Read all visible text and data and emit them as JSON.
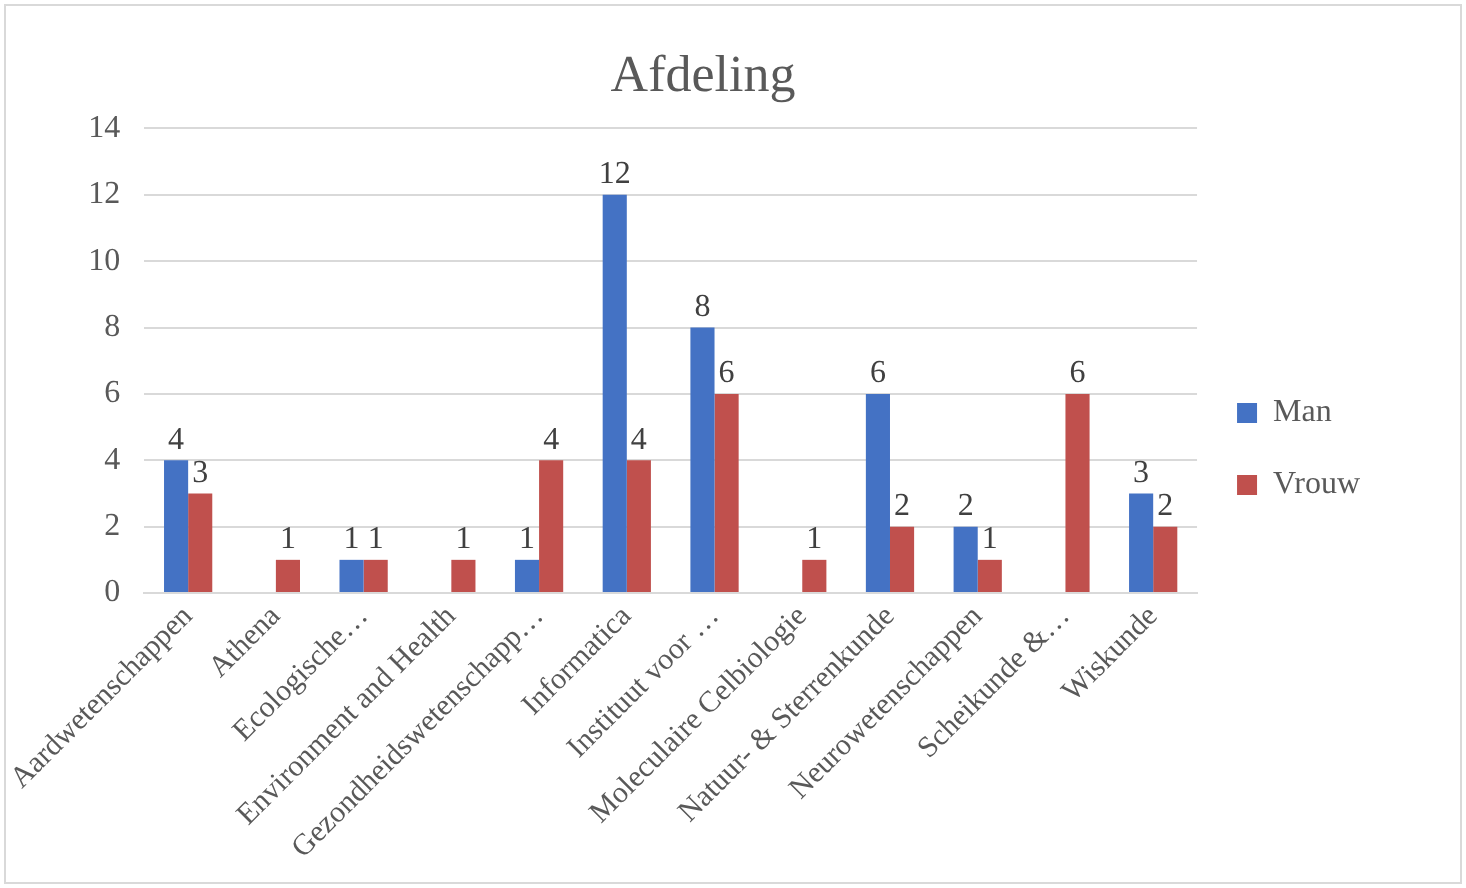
{
  "chart_data": {
    "type": "bar",
    "title": "Afdeling",
    "categories": [
      "Aardwetenschappen",
      "Athena",
      "Ecologische…",
      "Environment and Health",
      "Gezondheidswetenschapp…",
      "Informatica",
      "Instituut voor …",
      "Moleculaire Celbiologie",
      "Natuur- & Sterrenkunde",
      "Neurowetenschappen",
      "Scheikunde &…",
      "Wiskunde"
    ],
    "series": [
      {
        "name": "Man",
        "color": "#4472c4",
        "values": [
          4,
          null,
          1,
          null,
          1,
          12,
          8,
          null,
          6,
          2,
          null,
          3
        ]
      },
      {
        "name": "Vrouw",
        "color": "#c0504d",
        "values": [
          3,
          1,
          1,
          1,
          4,
          4,
          6,
          1,
          2,
          1,
          6,
          2
        ]
      }
    ],
    "ylim": [
      0,
      14
    ],
    "yticks": [
      0,
      2,
      4,
      6,
      8,
      10,
      12,
      14
    ],
    "grid": "y",
    "legend": "right",
    "data_labels": true
  }
}
